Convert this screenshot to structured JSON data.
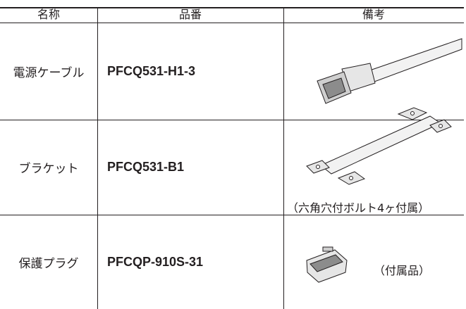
{
  "table": {
    "header": [
      "名称",
      "品番",
      "備考"
    ],
    "rows": [
      {
        "name": "電源ケーブル",
        "part": "PFCQ531-H1-3"
      },
      {
        "name": "ブラケット",
        "part": "PFCQ531-B1",
        "note": "（六角穴付ボルト4ヶ付属）"
      },
      {
        "name": "保護プラグ",
        "part": "PFCQP-910S-31",
        "note": "（付属品）"
      }
    ]
  }
}
